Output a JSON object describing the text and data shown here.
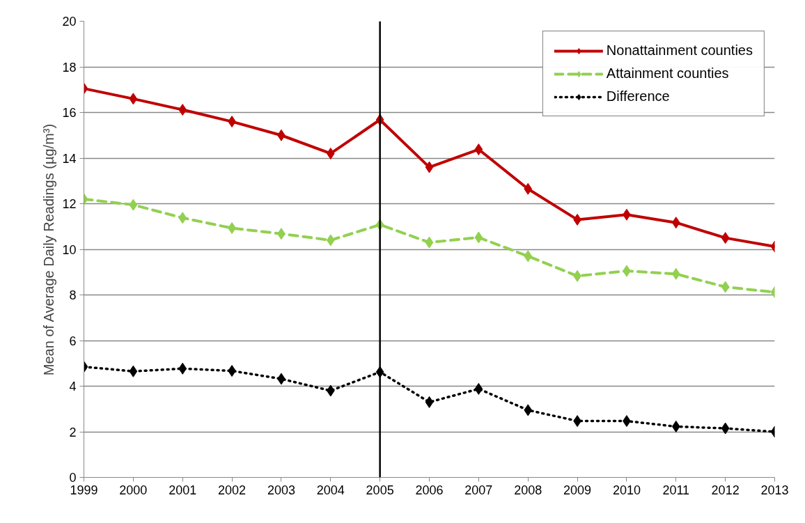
{
  "chart_data": {
    "type": "line",
    "ylabel": "Mean of Average Daily Readings (µg/m³)",
    "x": [
      1999,
      2000,
      2001,
      2002,
      2003,
      2004,
      2005,
      2006,
      2007,
      2008,
      2009,
      2010,
      2011,
      2012,
      2013
    ],
    "xlim": [
      1999,
      2013
    ],
    "xticks": [
      1999,
      2000,
      2001,
      2002,
      2003,
      2004,
      2005,
      2006,
      2007,
      2008,
      2009,
      2010,
      2011,
      2012,
      2013
    ],
    "ylim": [
      0,
      20
    ],
    "yticks": [
      0,
      2,
      4,
      6,
      8,
      10,
      12,
      14,
      16,
      18,
      20
    ],
    "grid": "y",
    "legend": "top right",
    "marker": "diamond",
    "series": [
      {
        "name": "Nonattainment counties",
        "color": "#c00000",
        "line_style": "solid",
        "values": [
          17.05,
          16.6,
          16.12,
          15.6,
          15.0,
          14.2,
          15.68,
          13.6,
          14.38,
          12.65,
          11.3,
          11.52,
          11.17,
          10.5,
          10.12
        ]
      },
      {
        "name": "Attainment counties",
        "color": "#92d050",
        "line_style": "dashed",
        "values": [
          12.2,
          11.95,
          11.38,
          10.93,
          10.68,
          10.4,
          11.08,
          10.3,
          10.52,
          9.7,
          8.83,
          9.05,
          8.92,
          8.35,
          8.12
        ]
      },
      {
        "name": "Difference",
        "color": "#000000",
        "line_style": "dotted",
        "values": [
          4.85,
          4.65,
          4.77,
          4.67,
          4.32,
          3.8,
          4.62,
          3.3,
          3.88,
          2.95,
          2.47,
          2.47,
          2.23,
          2.15,
          2.0
        ]
      }
    ],
    "ref_lines": [
      {
        "axis": "x",
        "value": 2005,
        "color": "#000000"
      }
    ]
  }
}
